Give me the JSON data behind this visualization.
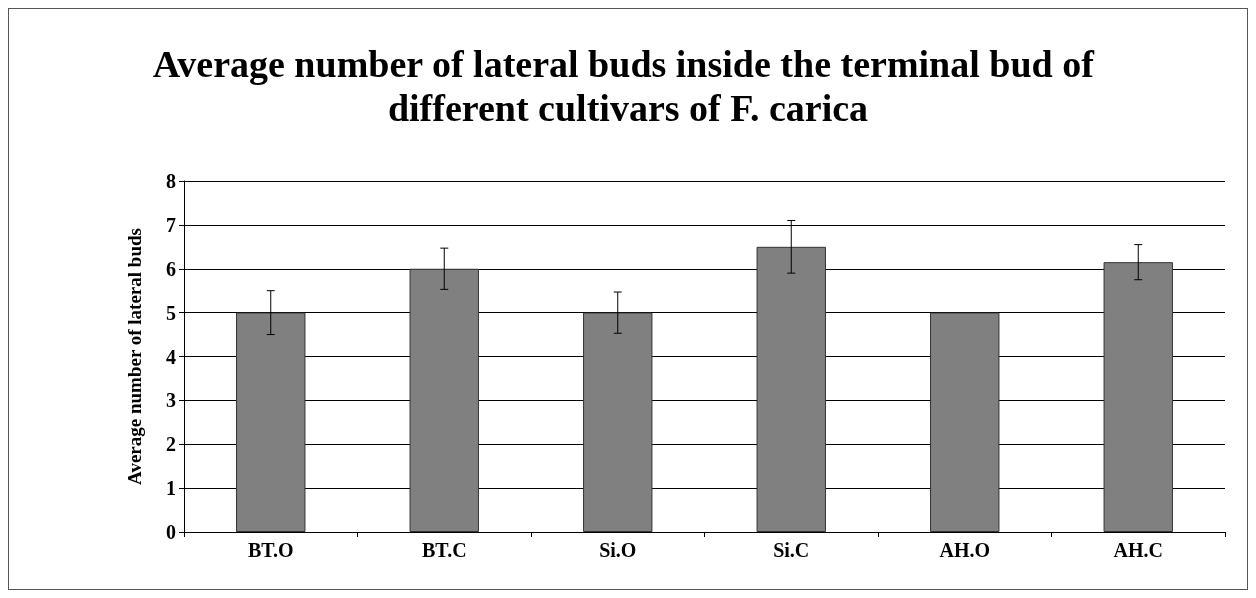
{
  "chart_data": {
    "type": "bar",
    "title": "Average number of lateral buds inside the terminal bud of different cultivars of F. carica",
    "ylabel": "Average number of lateral buds",
    "categories": [
      "BT.O",
      "BT.C",
      "Si.O",
      "Si.C",
      "AH.O",
      "AH.C"
    ],
    "values": [
      5,
      6,
      5,
      6.5,
      5,
      6.15
    ],
    "errors": [
      0.5,
      0.47,
      0.47,
      0.6,
      null,
      0.4
    ],
    "color": "#808080",
    "ylim": [
      0,
      8
    ],
    "yticks": [
      0,
      1,
      2,
      3,
      4,
      5,
      6,
      7,
      8
    ],
    "grid": "y"
  }
}
